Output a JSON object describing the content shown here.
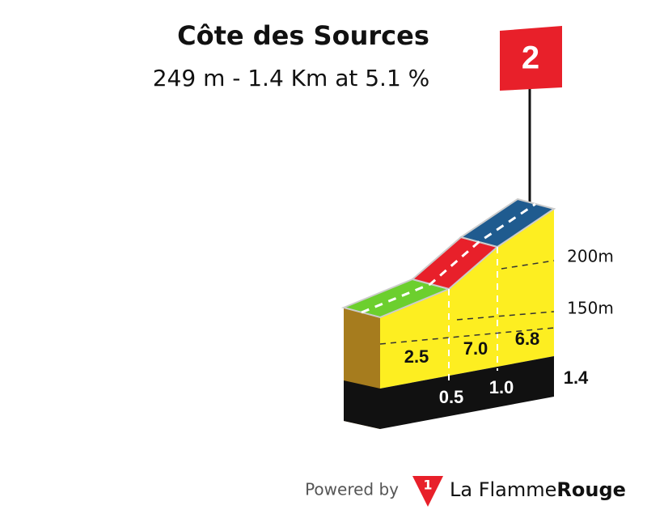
{
  "header": {
    "title": "Côte des Sources",
    "subtitle": "249 m - 1.4 Km at 5.1 %"
  },
  "category": "2",
  "profile": {
    "gradients": [
      "2.5",
      "7.0",
      "6.8"
    ],
    "distances": [
      "0.5",
      "1.0",
      "1.4"
    ],
    "altitudes": [
      "200m",
      "150m"
    ]
  },
  "footer": {
    "powered": "Powered by",
    "logo_mark": "1",
    "brand": "La Flamme",
    "brand_bold": "Rouge"
  }
}
